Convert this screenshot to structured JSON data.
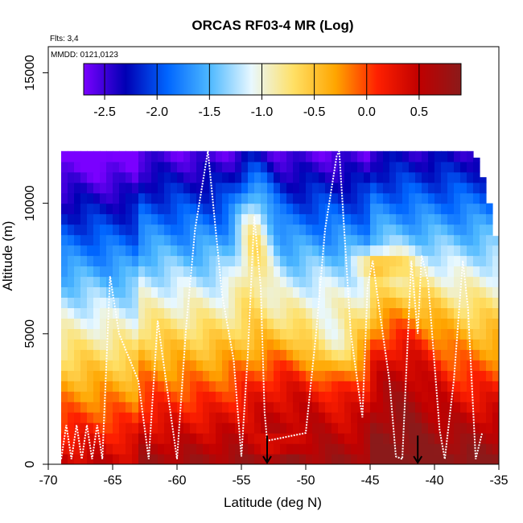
{
  "chart_data": {
    "type": "heatmap",
    "title": "ORCAS RF03-4 MR (Log)",
    "annotations": {
      "flights": "Flts: 3,4",
      "dates": "MMDD: 0121,0123"
    },
    "xlabel": "Latitude (deg N)",
    "ylabel": "Altitude (m)",
    "xlim": [
      -70,
      -35
    ],
    "ylim": [
      0,
      16000
    ],
    "xticks": [
      -70,
      -65,
      -60,
      -55,
      -50,
      -45,
      -40,
      -35
    ],
    "xtick_labels": [
      "-70",
      "-65",
      "-60",
      "-55",
      "-50",
      "-45",
      "-40",
      "-35"
    ],
    "yticks": [
      0,
      5000,
      10000,
      15000
    ],
    "ytick_labels": [
      "0",
      "5000",
      "10000",
      "15000"
    ],
    "colorbar": {
      "range": [
        -2.7,
        0.9
      ],
      "ticks": [
        -2.5,
        -2.0,
        -1.5,
        -1.0,
        -0.5,
        0.0,
        0.5
      ],
      "tick_labels": [
        "-2.5",
        "-2.0",
        "-1.5",
        "-1.0",
        "-0.5",
        "0.0",
        "0.5"
      ],
      "colors": [
        "#7a00ff",
        "#0000b4",
        "#0066ff",
        "#4db8ff",
        "#e8f8ff",
        "#ffe066",
        "#ffa600",
        "#ff2000",
        "#c00000",
        "#8b1a1a"
      ]
    },
    "domain_top_lat_edges": [
      [
        -69.2,
        12000
      ],
      [
        -37,
        12000
      ],
      [
        -36.5,
        11500
      ],
      [
        -35.5,
        9500
      ],
      [
        -35,
        8000
      ]
    ],
    "columns_lat_range": [
      -69.0,
      -35.0
    ],
    "surface_markers_lat": [
      -53.0,
      -41.3
    ],
    "flight_track_lat_alt": [
      [
        -69,
        200
      ],
      [
        -68.6,
        1500
      ],
      [
        -68.2,
        200
      ],
      [
        -67.8,
        1500
      ],
      [
        -67.4,
        200
      ],
      [
        -67,
        1500
      ],
      [
        -66.6,
        200
      ],
      [
        -66.2,
        1500
      ],
      [
        -65.8,
        200
      ],
      [
        -65.2,
        7200
      ],
      [
        -64.5,
        5000
      ],
      [
        -63,
        3200
      ],
      [
        -62.2,
        200
      ],
      [
        -61.5,
        5500
      ],
      [
        -60.8,
        3000
      ],
      [
        -60,
        200
      ],
      [
        -59.3,
        5200
      ],
      [
        -58.6,
        9000
      ],
      [
        -57.6,
        12000
      ],
      [
        -56.5,
        6500
      ],
      [
        -55.6,
        4000
      ],
      [
        -55,
        300
      ],
      [
        -54.5,
        4200
      ],
      [
        -54,
        9500
      ],
      [
        -53.5,
        6800
      ],
      [
        -53.2,
        2000
      ],
      [
        -53,
        900
      ],
      [
        -52,
        1000
      ],
      [
        -51,
        1100
      ],
      [
        -50,
        1200
      ],
      [
        -49.2,
        5000
      ],
      [
        -48.5,
        9000
      ],
      [
        -47.6,
        11800
      ],
      [
        -47.4,
        12000
      ],
      [
        -46.5,
        5000
      ],
      [
        -45.6,
        1800
      ],
      [
        -45.2,
        6800
      ],
      [
        -44.8,
        7800
      ],
      [
        -44.3,
        6000
      ],
      [
        -43.5,
        3200
      ],
      [
        -43,
        300
      ],
      [
        -42.5,
        200
      ],
      [
        -41.8,
        7800
      ],
      [
        -41.3,
        5000
      ],
      [
        -41,
        8000
      ],
      [
        -40.5,
        7000
      ],
      [
        -39.6,
        1300
      ],
      [
        -39.2,
        200
      ],
      [
        -38.5,
        3200
      ],
      [
        -37.8,
        7800
      ],
      [
        -37.4,
        6000
      ],
      [
        -36.8,
        200
      ],
      [
        -36.3,
        1200
      ]
    ]
  }
}
